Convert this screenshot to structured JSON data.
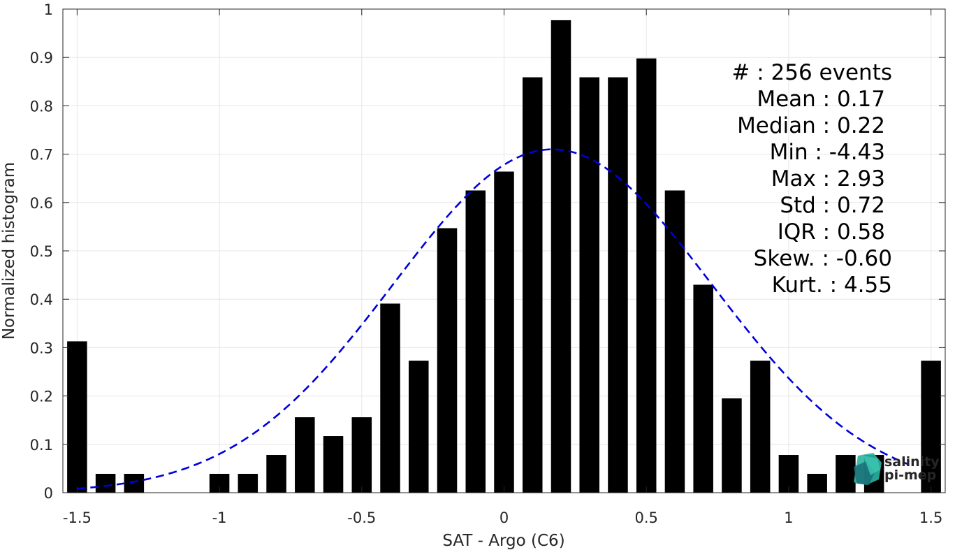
{
  "chart_data": {
    "type": "bar",
    "xlabel": "SAT - Argo (C6)",
    "ylabel": "Normalized histogram",
    "xlim": [
      -1.55,
      1.55
    ],
    "ylim": [
      0,
      1
    ],
    "grid": true,
    "x_ticks": [
      -1.5,
      -1,
      -0.5,
      0,
      0.5,
      1,
      1.5
    ],
    "x_tick_labels": [
      "-1.5",
      "-1",
      "-0.5",
      "0",
      "0.5",
      "1",
      "1.5"
    ],
    "y_ticks": [
      0,
      0.1,
      0.2,
      0.3,
      0.4,
      0.5,
      0.6,
      0.7,
      0.8,
      0.9,
      1
    ],
    "y_tick_labels": [
      "0",
      "0.1",
      "0.2",
      "0.3",
      "0.4",
      "0.5",
      "0.6",
      "0.7",
      "0.8",
      "0.9",
      "1"
    ],
    "bar_color": "#000000",
    "bar_width": 0.07,
    "x": [
      -1.5,
      -1.4,
      -1.3,
      -1.2,
      -1.1,
      -1.0,
      -0.9,
      -0.8,
      -0.7,
      -0.6,
      -0.5,
      -0.4,
      -0.3,
      -0.2,
      -0.1,
      0.0,
      0.1,
      0.2,
      0.3,
      0.4,
      0.5,
      0.6,
      0.7,
      0.8,
      0.9,
      1.0,
      1.1,
      1.2,
      1.3,
      1.4,
      1.5
    ],
    "values": [
      0.313,
      0.039,
      0.039,
      0,
      0,
      0.039,
      0.039,
      0.078,
      0.156,
      0.117,
      0.156,
      0.391,
      0.273,
      0.547,
      0.625,
      0.664,
      0.859,
      0.977,
      0.859,
      0.859,
      0.898,
      0.625,
      0.43,
      0.195,
      0.273,
      0.078,
      0.039,
      0.078,
      0.078,
      0,
      0.273
    ],
    "fit_curve": {
      "style": "dashed",
      "color": "#0000dd",
      "mean": 0.17,
      "std": 0.56,
      "peak": 0.71,
      "x_range": [
        -1.5,
        1.42
      ]
    },
    "stats_box": {
      "lines": [
        "#  : 256 events",
        "Mean : 0.17",
        "Median : 0.22",
        "Min : -4.43",
        "Max : 2.93",
        "Std : 0.72",
        "IQR : 0.58",
        "Skew. : -0.60",
        "Kurt. : 4.55"
      ]
    }
  },
  "logo": {
    "line1": "salinity",
    "line2": "pi-mep",
    "color_primary": "#2bb3a0",
    "color_secondary": "#1a6e78"
  }
}
